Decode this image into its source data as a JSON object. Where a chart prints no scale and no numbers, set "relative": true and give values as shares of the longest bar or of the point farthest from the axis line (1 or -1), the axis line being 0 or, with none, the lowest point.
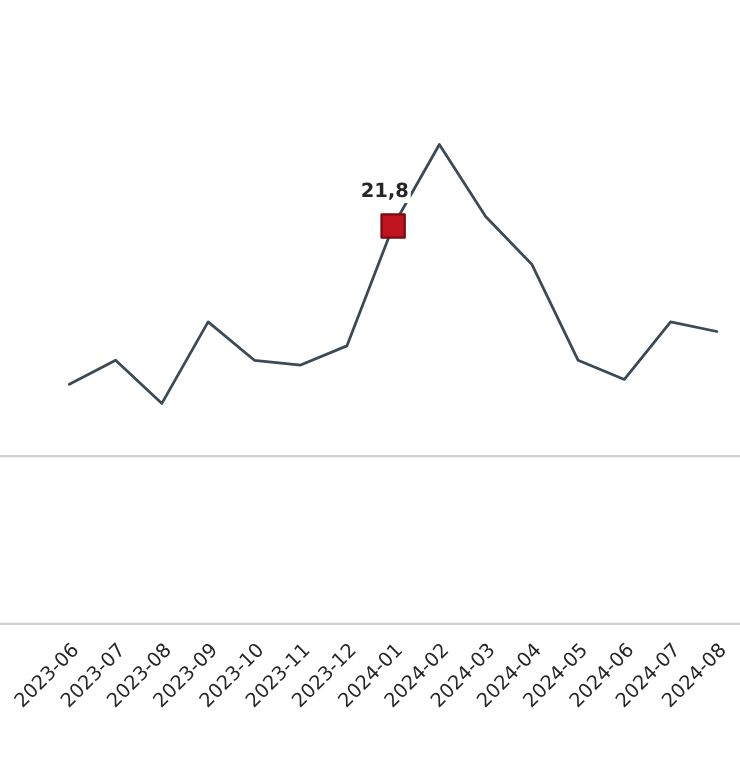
{
  "chart_data": {
    "type": "line",
    "relative": true,
    "categories": [
      "2023-06",
      "2023-07",
      "2023-08",
      "2023-09",
      "2023-10",
      "2023-11",
      "2023-12",
      "2024-01",
      "2024-02",
      "2024-03",
      "2024-04",
      "2024-05",
      "2024-06",
      "2024-07",
      "2024-08"
    ],
    "series": [
      {
        "color": "#3b4a56",
        "marker": "none",
        "line_style": "solid",
        "values": [
          0.5,
          0.55,
          0.46,
          0.63,
          0.55,
          0.54,
          0.58,
          0.83,
          1,
          0.85,
          0.75,
          0.55,
          0.51,
          0.63,
          0.61
        ]
      },
      {
        "type": "scatter",
        "color": "#c0141e",
        "marker": "square",
        "values": [
          null,
          null,
          null,
          null,
          null,
          null,
          null,
          0.83,
          null,
          null,
          null,
          null,
          null,
          null,
          null
        ]
      }
    ],
    "annotations": [
      {
        "text": "21,8",
        "x": "2024-01",
        "y": 0.83
      }
    ],
    "ref_lines": [
      {
        "axis": "y",
        "value": 0.35,
        "color": "#d0d0d0"
      }
    ],
    "grid": false,
    "legend": false
  }
}
